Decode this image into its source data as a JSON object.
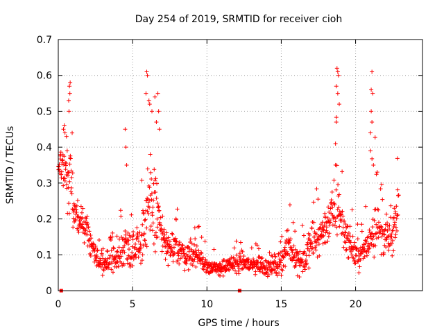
{
  "chart_data": {
    "type": "scatter",
    "title": "Day 254 of 2019, SRMTID for receiver cioh",
    "xlabel": "GPS time / hours",
    "ylabel": "SRMTID / TECUs",
    "xlim": [
      0,
      24.5
    ],
    "ylim": [
      0,
      0.7
    ],
    "xticks": [
      0,
      5,
      10,
      15,
      20
    ],
    "xtick_labels": [
      "0",
      "5",
      "10",
      "15",
      "20"
    ],
    "yticks": [
      0,
      0.1,
      0.2,
      0.3,
      0.4,
      0.5,
      0.6,
      0.7
    ],
    "ytick_labels": [
      "0",
      "0.1",
      "0.2",
      "0.3",
      "0.4",
      "0.5",
      "0.6",
      "0.7"
    ],
    "grid": true,
    "marker": "+",
    "color": "#ff0000",
    "time_range": [
      0.0,
      22.9
    ],
    "zero_markers_x": [
      0.2,
      12.2
    ],
    "envelope": {
      "x": [
        0.0,
        0.3,
        0.5,
        0.8,
        1.0,
        1.5,
        2.0,
        2.5,
        3.0,
        3.5,
        4.0,
        4.5,
        5.0,
        5.5,
        6.0,
        6.3,
        6.6,
        7.0,
        7.5,
        8.0,
        8.5,
        9.0,
        9.5,
        10.0,
        10.5,
        11.0,
        11.5,
        12.0,
        12.5,
        13.0,
        13.5,
        14.0,
        14.5,
        15.0,
        15.5,
        16.0,
        16.5,
        17.0,
        17.5,
        18.0,
        18.5,
        18.8,
        19.0,
        19.5,
        20.0,
        20.5,
        21.0,
        21.3,
        21.6,
        22.0,
        22.5,
        22.9
      ],
      "median": [
        0.33,
        0.36,
        0.3,
        0.33,
        0.22,
        0.2,
        0.16,
        0.1,
        0.07,
        0.08,
        0.09,
        0.13,
        0.12,
        0.14,
        0.2,
        0.25,
        0.23,
        0.15,
        0.11,
        0.12,
        0.1,
        0.11,
        0.09,
        0.07,
        0.06,
        0.065,
        0.07,
        0.075,
        0.08,
        0.07,
        0.075,
        0.065,
        0.07,
        0.08,
        0.13,
        0.09,
        0.08,
        0.13,
        0.15,
        0.18,
        0.22,
        0.27,
        0.2,
        0.14,
        0.1,
        0.1,
        0.15,
        0.2,
        0.16,
        0.15,
        0.14,
        0.25
      ],
      "spread": [
        0.02,
        0.06,
        0.06,
        0.09,
        0.05,
        0.05,
        0.04,
        0.03,
        0.025,
        0.03,
        0.04,
        0.05,
        0.05,
        0.06,
        0.11,
        0.13,
        0.11,
        0.05,
        0.04,
        0.04,
        0.035,
        0.035,
        0.03,
        0.02,
        0.02,
        0.02,
        0.02,
        0.025,
        0.025,
        0.025,
        0.025,
        0.025,
        0.025,
        0.03,
        0.04,
        0.035,
        0.035,
        0.05,
        0.05,
        0.05,
        0.07,
        0.13,
        0.06,
        0.04,
        0.035,
        0.035,
        0.05,
        0.1,
        0.05,
        0.05,
        0.05,
        0.06
      ]
    },
    "spikes": [
      {
        "x": 0.35,
        "y": 0.45
      },
      {
        "x": 0.45,
        "y": 0.44
      },
      {
        "x": 0.55,
        "y": 0.43
      },
      {
        "x": 0.75,
        "y": 0.57
      },
      {
        "x": 0.8,
        "y": 0.58
      },
      {
        "x": 0.7,
        "y": 0.53
      },
      {
        "x": 0.72,
        "y": 0.5
      },
      {
        "x": 0.78,
        "y": 0.55
      },
      {
        "x": 4.5,
        "y": 0.45
      },
      {
        "x": 4.55,
        "y": 0.4
      },
      {
        "x": 4.6,
        "y": 0.35
      },
      {
        "x": 5.95,
        "y": 0.61
      },
      {
        "x": 6.0,
        "y": 0.6
      },
      {
        "x": 5.9,
        "y": 0.55
      },
      {
        "x": 6.1,
        "y": 0.53
      },
      {
        "x": 6.15,
        "y": 0.52
      },
      {
        "x": 6.3,
        "y": 0.5
      },
      {
        "x": 6.5,
        "y": 0.54
      },
      {
        "x": 6.7,
        "y": 0.55
      },
      {
        "x": 6.75,
        "y": 0.5
      },
      {
        "x": 6.8,
        "y": 0.45
      },
      {
        "x": 6.6,
        "y": 0.47
      },
      {
        "x": 18.75,
        "y": 0.62
      },
      {
        "x": 18.8,
        "y": 0.61
      },
      {
        "x": 18.85,
        "y": 0.6
      },
      {
        "x": 18.7,
        "y": 0.57
      },
      {
        "x": 18.9,
        "y": 0.52
      },
      {
        "x": 18.8,
        "y": 0.55
      },
      {
        "x": 18.7,
        "y": 0.47
      },
      {
        "x": 18.65,
        "y": 0.41
      },
      {
        "x": 21.1,
        "y": 0.61
      },
      {
        "x": 21.05,
        "y": 0.56
      },
      {
        "x": 21.15,
        "y": 0.55
      },
      {
        "x": 21.05,
        "y": 0.5
      },
      {
        "x": 21.0,
        "y": 0.44
      },
      {
        "x": 21.0,
        "y": 0.39
      },
      {
        "x": 21.1,
        "y": 0.47
      },
      {
        "x": 21.2,
        "y": 0.35
      }
    ]
  }
}
